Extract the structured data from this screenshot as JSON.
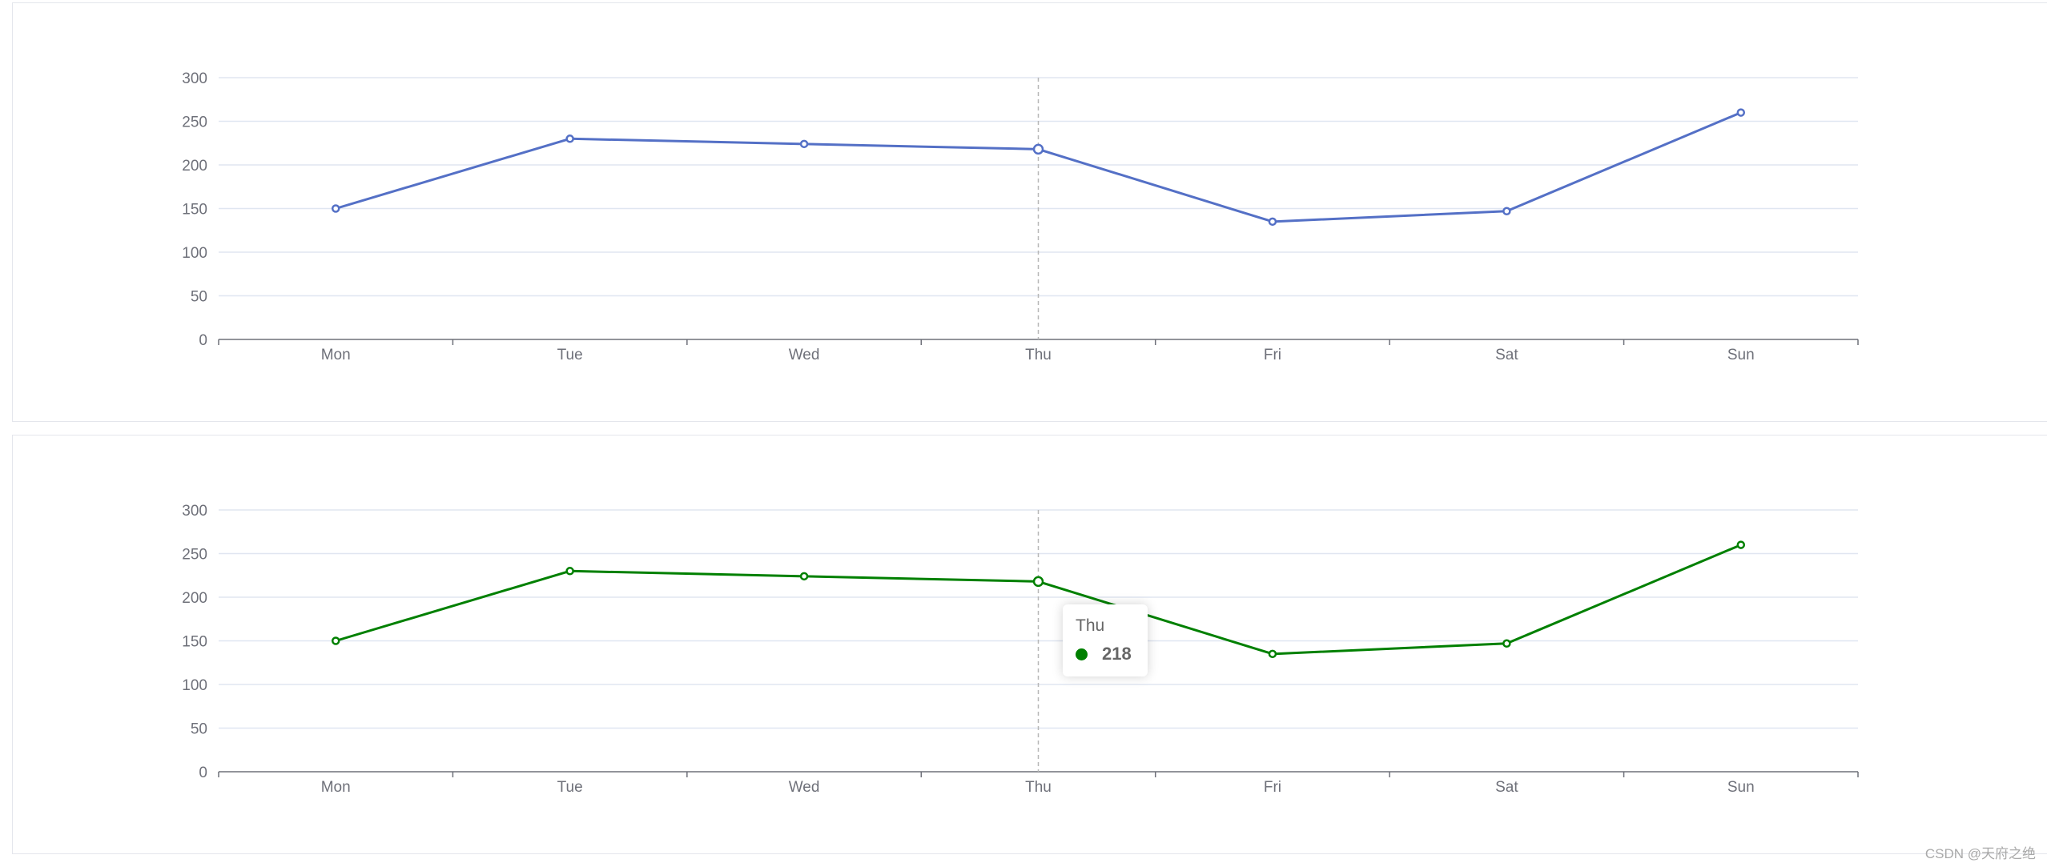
{
  "chart_data": [
    {
      "type": "line",
      "categories": [
        "Mon",
        "Tue",
        "Wed",
        "Thu",
        "Fri",
        "Sat",
        "Sun"
      ],
      "series": [
        {
          "values": [
            150,
            230,
            224,
            218,
            135,
            147,
            260
          ],
          "color": "#5470c6"
        }
      ],
      "y_ticks": [
        "0",
        "50",
        "100",
        "150",
        "200",
        "250",
        "300"
      ],
      "ylim": [
        0,
        300
      ],
      "grid": true,
      "hover_category": "Thu"
    },
    {
      "type": "line",
      "categories": [
        "Mon",
        "Tue",
        "Wed",
        "Thu",
        "Fri",
        "Sat",
        "Sun"
      ],
      "series": [
        {
          "values": [
            150,
            230,
            224,
            218,
            135,
            147,
            260
          ],
          "color": "#008000"
        }
      ],
      "y_ticks": [
        "0",
        "50",
        "100",
        "150",
        "200",
        "250",
        "300"
      ],
      "ylim": [
        0,
        300
      ],
      "grid": true,
      "hover_category": "Thu"
    }
  ],
  "tooltip": {
    "title": "Thu",
    "value": "218",
    "color": "#008000"
  },
  "watermark": "CSDN @天府之绝"
}
